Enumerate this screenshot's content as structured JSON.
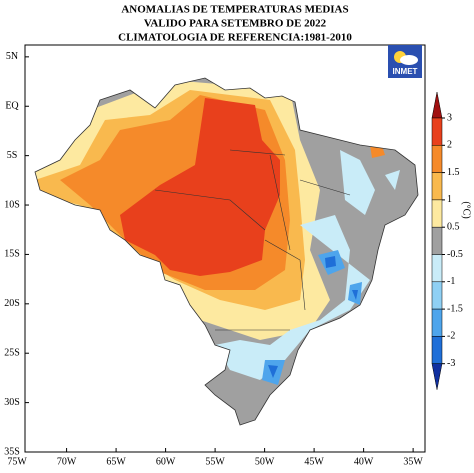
{
  "map": {
    "title_lines": [
      "ANOMALIAS DE TEMPERATURAS MEDIAS",
      "VALIDO PARA SETEMBRO DE 2022",
      "CLIMATOLOGIA DE REFERENCIA:1981-2010"
    ],
    "logo": "INMET",
    "lonlim": [
      -74.2,
      -33.8
    ],
    "latlim": [
      6.2,
      -35
    ],
    "xticks": [
      {
        "value": -75,
        "label": "75W"
      },
      {
        "value": -70,
        "label": "70W"
      },
      {
        "value": -65,
        "label": "65W"
      },
      {
        "value": -60,
        "label": "60W"
      },
      {
        "value": -55,
        "label": "55W"
      },
      {
        "value": -50,
        "label": "50W"
      },
      {
        "value": -45,
        "label": "45W"
      },
      {
        "value": -40,
        "label": "40W"
      },
      {
        "value": -35,
        "label": "35W"
      }
    ],
    "yticks": [
      {
        "value": 5,
        "label": "5N"
      },
      {
        "value": 0,
        "label": "EQ"
      },
      {
        "value": -5,
        "label": "5S"
      },
      {
        "value": -10,
        "label": "10S"
      },
      {
        "value": -15,
        "label": "15S"
      },
      {
        "value": -20,
        "label": "20S"
      },
      {
        "value": -25,
        "label": "25S"
      },
      {
        "value": -30,
        "label": "30S"
      },
      {
        "value": -35,
        "label": "35S"
      }
    ],
    "colorbar": {
      "unit": "(°C)",
      "ticks": [
        3,
        2,
        1.5,
        1,
        0.5,
        -0.5,
        -1,
        -1.5,
        -2,
        -3
      ],
      "colors": [
        "#a01010",
        "#e8401c",
        "#f58a2a",
        "#f9b94e",
        "#fde9a0",
        "#a0a0a0",
        "#c9ecf8",
        "#8fd0f4",
        "#4ea5ec",
        "#1f6fd8",
        "#1030a0"
      ]
    }
  }
}
